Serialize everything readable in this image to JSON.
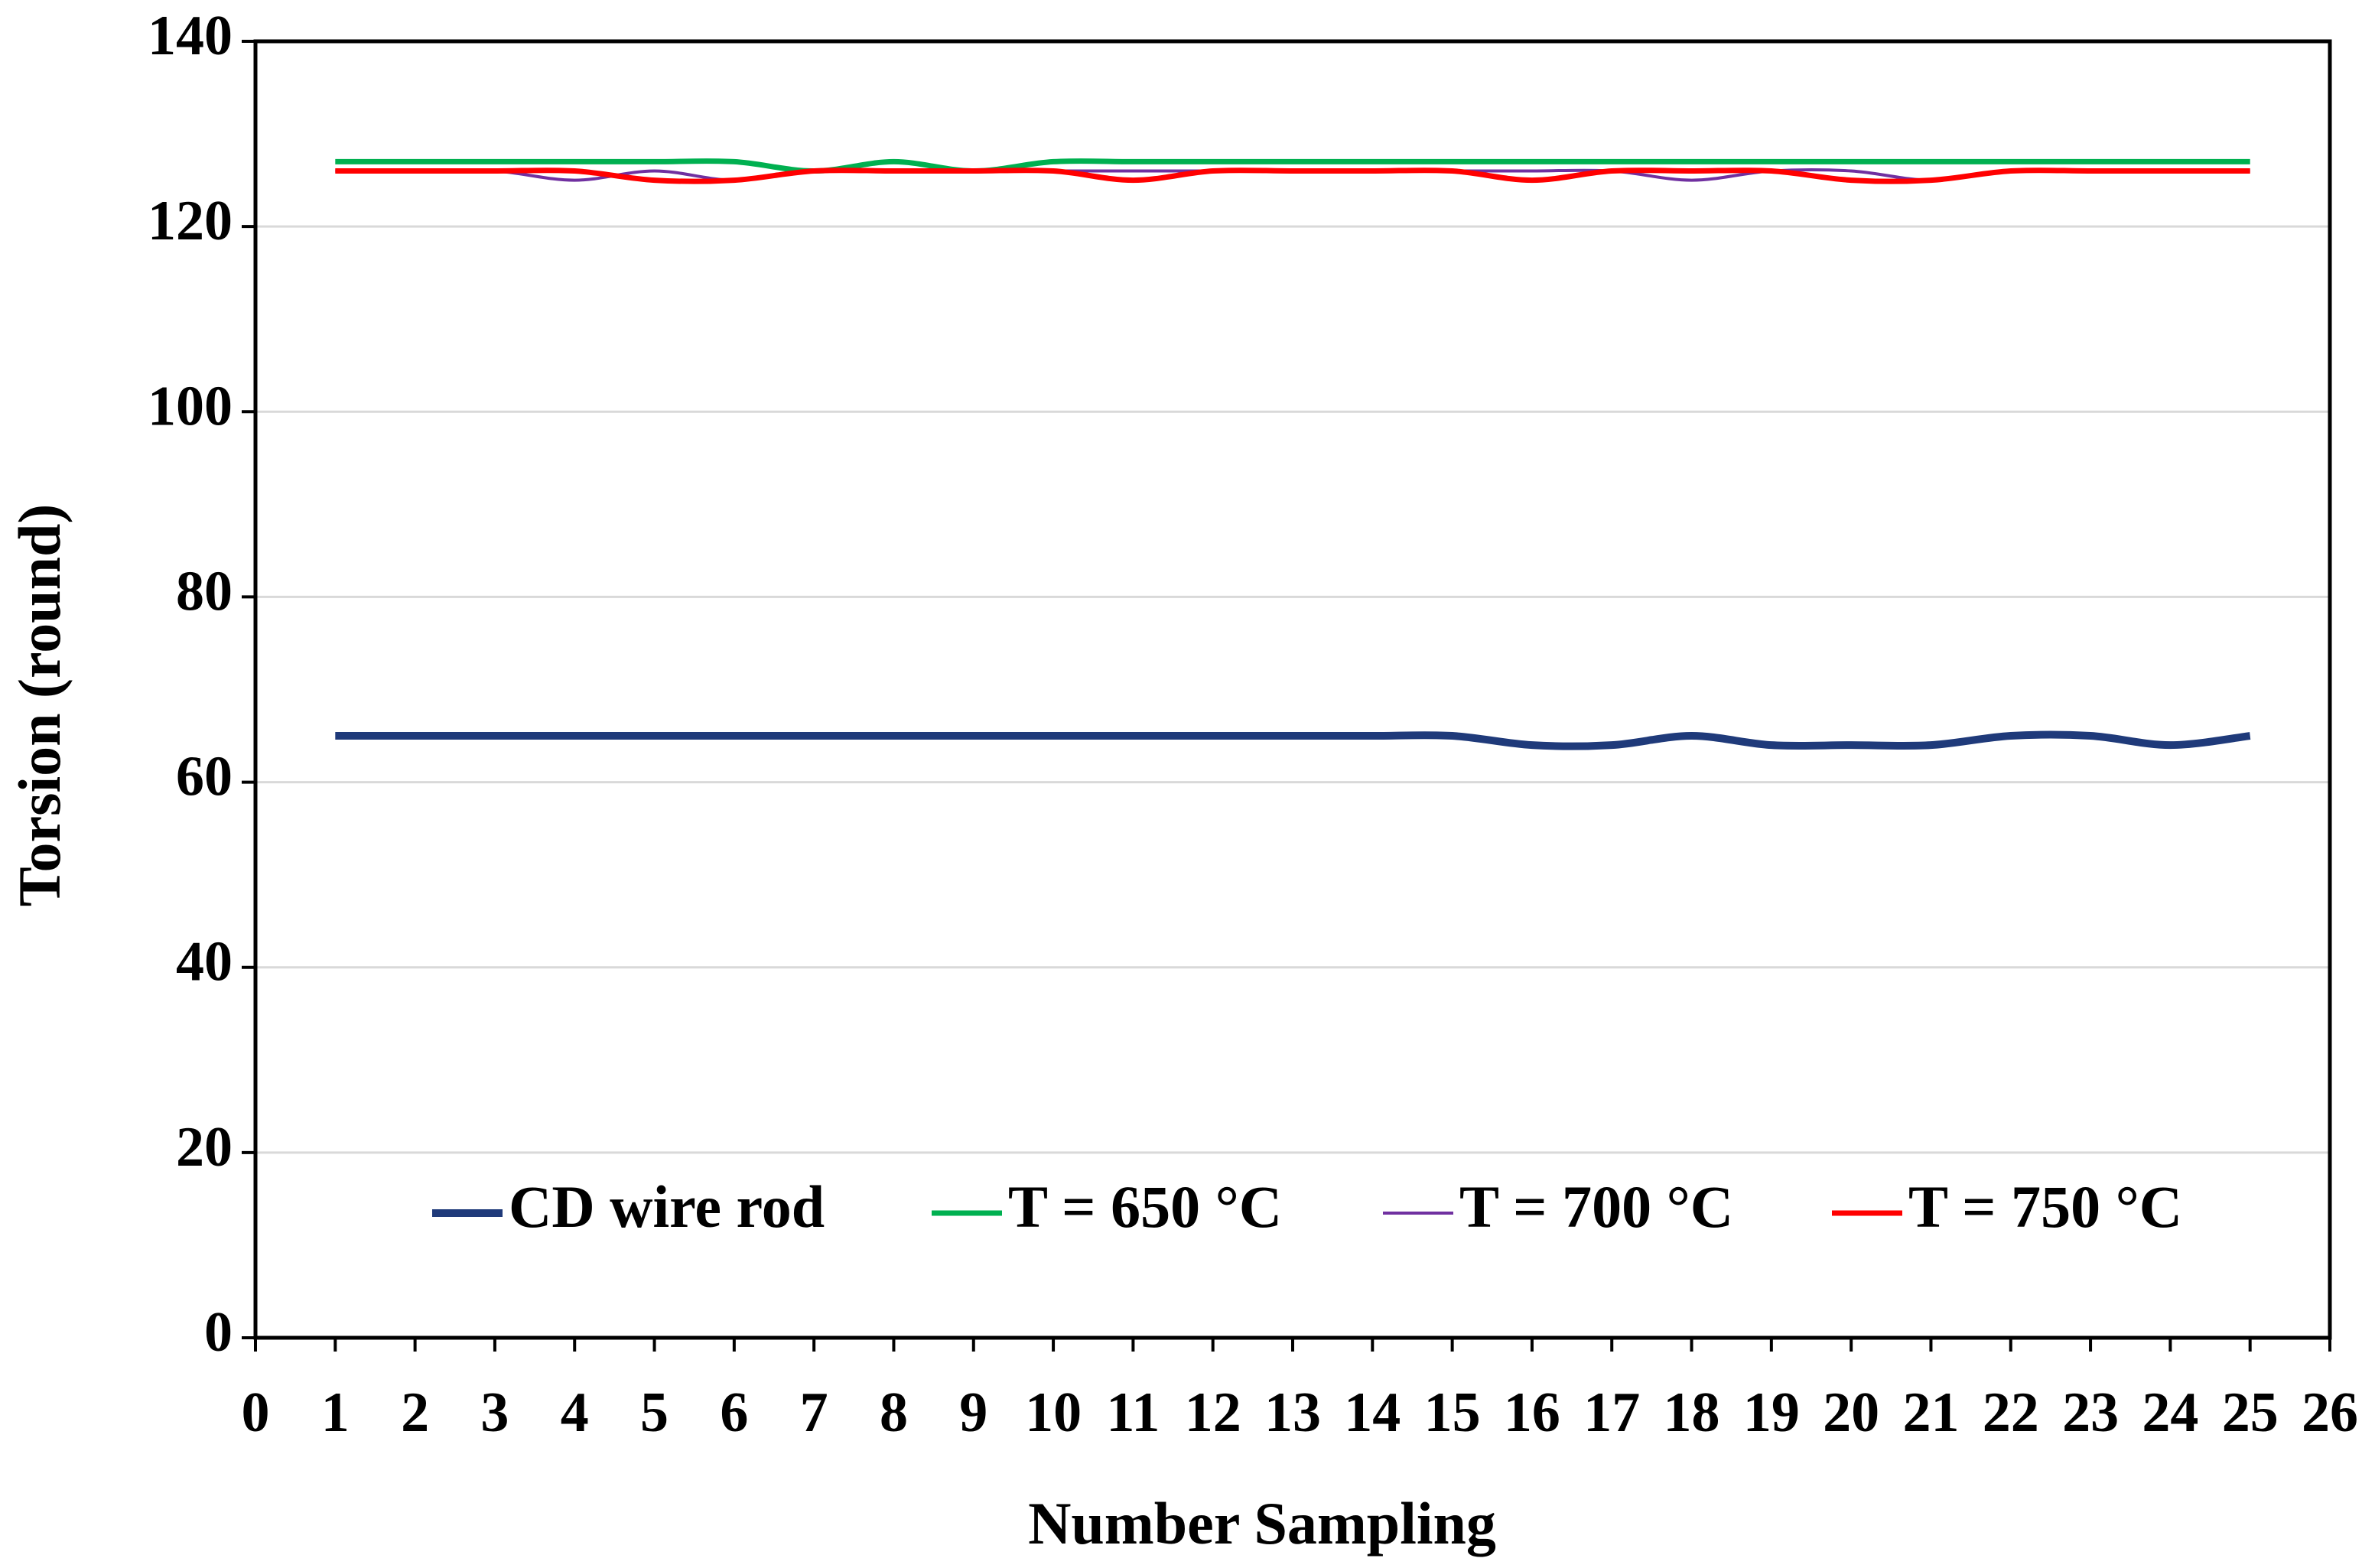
{
  "chart_data": {
    "type": "line",
    "x_label": "Number Sampling",
    "y_label": "Torsion (round)",
    "x": [
      1,
      2,
      3,
      4,
      5,
      6,
      7,
      8,
      9,
      10,
      11,
      12,
      13,
      14,
      15,
      16,
      17,
      18,
      19,
      20,
      21,
      22,
      23,
      24,
      25
    ],
    "series": [
      {
        "name": "CD wire rod",
        "color": "#1f3a7a",
        "values": [
          65,
          65,
          65,
          65,
          65,
          65,
          65,
          65,
          65,
          65,
          65,
          65,
          65,
          65,
          65,
          64,
          64,
          65,
          64,
          64,
          64,
          65,
          65,
          64,
          65
        ]
      },
      {
        "name": "T = 650 °C",
        "color": "#00b050",
        "values": [
          127,
          127,
          127,
          127,
          127,
          127,
          126,
          127,
          126,
          127,
          127,
          127,
          127,
          127,
          127,
          127,
          127,
          127,
          127,
          127,
          127,
          127,
          127,
          127,
          127
        ]
      },
      {
        "name": "T = 700 °C",
        "color": "#7030a0",
        "values": [
          126,
          126,
          126,
          125,
          126,
          125,
          126,
          126,
          126,
          126,
          126,
          126,
          126,
          126,
          126,
          126,
          126,
          125,
          126,
          126,
          125,
          126,
          126,
          126,
          126
        ]
      },
      {
        "name": "T = 750 °C",
        "color": "#ff0000",
        "values": [
          126,
          126,
          126,
          126,
          125,
          125,
          126,
          126,
          126,
          126,
          125,
          126,
          126,
          126,
          126,
          125,
          126,
          126,
          126,
          125,
          125,
          126,
          126,
          126,
          126
        ]
      }
    ],
    "xlim": [
      0,
      26
    ],
    "xticks": [
      0,
      1,
      2,
      3,
      4,
      5,
      6,
      7,
      8,
      9,
      10,
      11,
      12,
      13,
      14,
      15,
      16,
      17,
      18,
      19,
      20,
      21,
      22,
      23,
      24,
      25,
      26
    ],
    "ylim": [
      0,
      140
    ],
    "yticks": [
      0,
      20,
      40,
      60,
      80,
      100,
      120,
      140
    ],
    "grid": true,
    "smooth": true,
    "legend": "lower center"
  }
}
